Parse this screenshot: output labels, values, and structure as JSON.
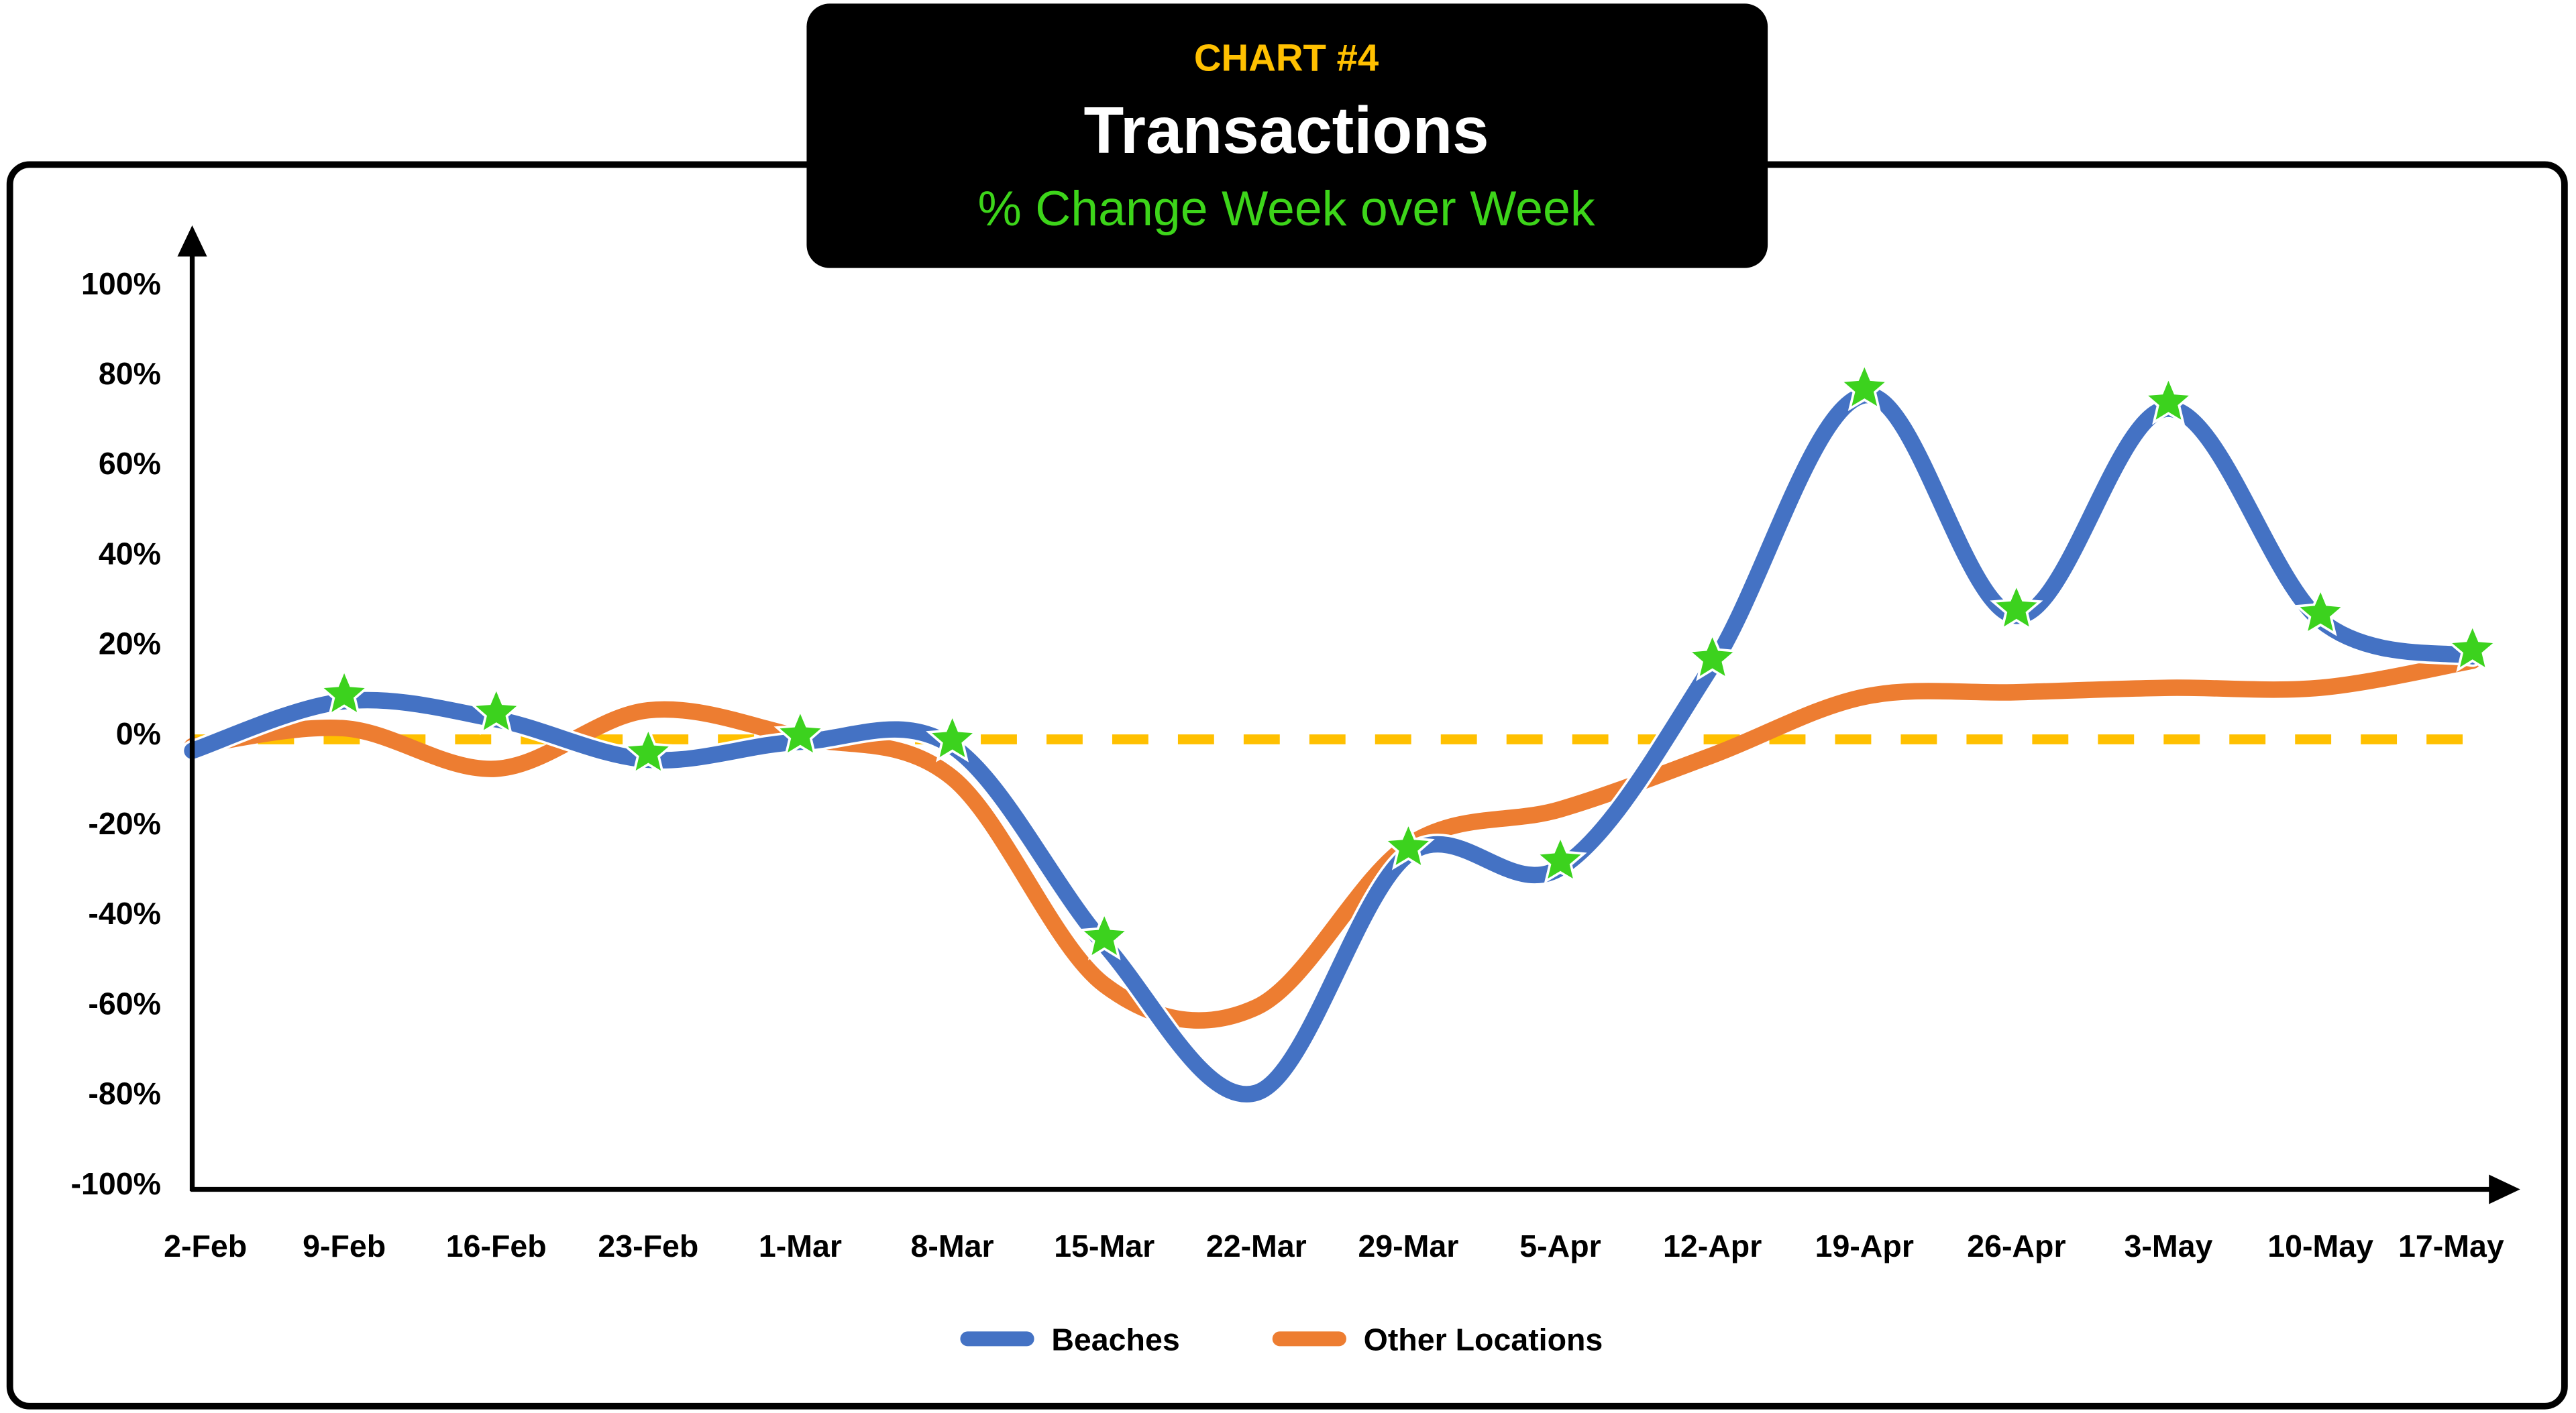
{
  "header": {
    "kicker": "CHART #4",
    "title": "Transactions",
    "subtitle": "% Change Week over Week"
  },
  "colors": {
    "kicker": "#FFC000",
    "title": "#FFFFFF",
    "subtitle": "#3DD51A",
    "beaches": "#4472C4",
    "other": "#ED7D31",
    "zero_line": "#FFC000",
    "marker": "#3CD21E"
  },
  "chart_data": {
    "type": "line",
    "title": "Transactions",
    "subtitle": "% Change Week over Week",
    "xlabel": "",
    "ylabel": "",
    "categories": [
      "2-Feb",
      "9-Feb",
      "16-Feb",
      "23-Feb",
      "1-Mar",
      "8-Mar",
      "15-Mar",
      "22-Mar",
      "29-Mar",
      "5-Apr",
      "12-Apr",
      "19-Apr",
      "26-Apr",
      "3-May",
      "10-May",
      "17-May"
    ],
    "y_ticks": [
      "100%",
      "80%",
      "60%",
      "40%",
      "20%",
      "0%",
      "-20%",
      "-40%",
      "-60%",
      "-80%",
      "-100%"
    ],
    "ylim": [
      -100,
      100
    ],
    "grid": false,
    "smooth": true,
    "reference_line": {
      "value": 0,
      "style": "dashed"
    },
    "legend_position": "bottom",
    "series": [
      {
        "name": "Beaches",
        "values": [
          -4,
          7,
          3,
          -6,
          -2,
          -3,
          -47,
          -80,
          -27,
          -30,
          15,
          75,
          26,
          72,
          25,
          17
        ],
        "star_markers": [
          false,
          true,
          true,
          true,
          true,
          true,
          true,
          false,
          true,
          true,
          true,
          true,
          true,
          true,
          true,
          true
        ]
      },
      {
        "name": "Other Locations",
        "values": [
          -3,
          1,
          -8,
          5,
          -1,
          -10,
          -56,
          -61,
          -25,
          -17,
          -5,
          8,
          9,
          10,
          10,
          16
        ]
      }
    ]
  }
}
